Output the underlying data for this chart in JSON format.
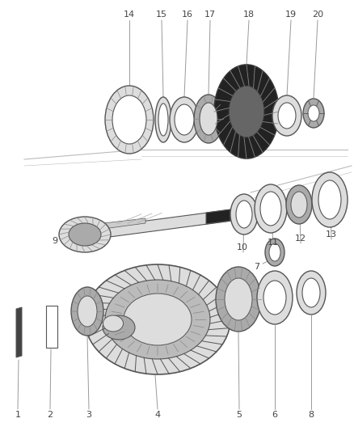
{
  "background_color": "#ffffff",
  "fig_width": 4.38,
  "fig_height": 5.33,
  "dpi": 100,
  "label_color": "#444444",
  "line_color": "#999999",
  "part_gray": "#aaaaaa",
  "part_dark": "#555555",
  "part_light": "#dddddd",
  "part_outline": "#555555",
  "part_mid": "#888888",
  "shelf_color": "#bbbbbb"
}
